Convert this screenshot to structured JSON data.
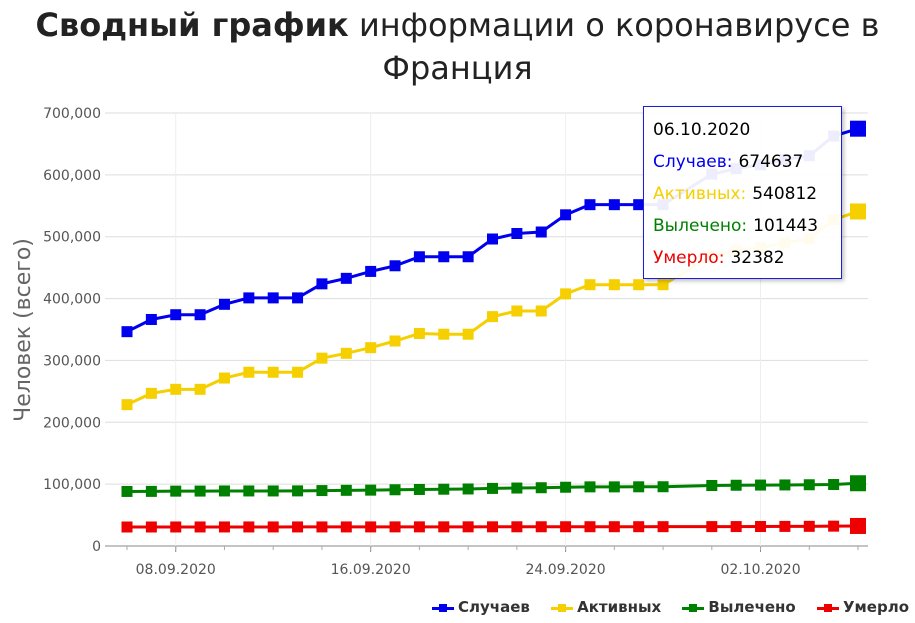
{
  "title": {
    "bold": "Сводный график",
    "rest": "информации о коронавирусе в Франция"
  },
  "colors": {
    "cases": "#0000ee",
    "active": "#f5cf00",
    "recovered": "#008000",
    "deaths": "#ee0000"
  },
  "chart_data": {
    "type": "line",
    "ylabel": "Человек (всего)",
    "ylim": [
      0,
      700000
    ],
    "yticks": [
      "700,000",
      "600,000",
      "500,000",
      "400,000",
      "300,000",
      "200,000",
      "100,000",
      "0"
    ],
    "xtick_labels": [
      "08.09.2020",
      "16.09.2020",
      "24.09.2020",
      "02.10.2020"
    ],
    "x": [
      "06.09.2020",
      "07.09.2020",
      "08.09.2020",
      "09.09.2020",
      "10.09.2020",
      "11.09.2020",
      "12.09.2020",
      "13.09.2020",
      "14.09.2020",
      "15.09.2020",
      "16.09.2020",
      "17.09.2020",
      "18.09.2020",
      "19.09.2020",
      "20.09.2020",
      "21.09.2020",
      "22.09.2020",
      "23.09.2020",
      "24.09.2020",
      "25.09.2020",
      "26.09.2020",
      "27.09.2020",
      "28.09.2020",
      "30.09.2020",
      "01.10.2020",
      "02.10.2020",
      "03.10.2020",
      "04.10.2020",
      "05.10.2020",
      "06.10.2020"
    ],
    "series": [
      {
        "name": "Случаев",
        "color": "#0000ee",
        "values": [
          346500,
          366200,
          373900,
          373900,
          390700,
          401100,
          401100,
          401100,
          423800,
          432700,
          443900,
          453000,
          467600,
          467600,
          467600,
          496300,
          505200,
          507600,
          535400,
          551800,
          551800,
          551800,
          551800,
          601200,
          610100,
          616300,
          624600,
          631000,
          662800,
          674637
        ]
      },
      {
        "name": "Активных",
        "color": "#f5cf00",
        "values": [
          228500,
          246800,
          253300,
          253300,
          271500,
          280900,
          280900,
          280900,
          303700,
          311500,
          320600,
          331400,
          343600,
          342400,
          342400,
          370800,
          379900,
          379900,
          407600,
          422400,
          422400,
          422400,
          422400,
          468200,
          478100,
          482500,
          489800,
          497000,
          527400,
          540812
        ]
      },
      {
        "name": "Вылечено",
        "color": "#008000",
        "values": [
          88200,
          88300,
          88700,
          88800,
          89000,
          89000,
          89000,
          89100,
          89600,
          90000,
          90300,
          90900,
          91400,
          91800,
          92200,
          93100,
          93700,
          94200,
          95000,
          95600,
          95600,
          95700,
          95800,
          97800,
          98200,
          98500,
          98700,
          99000,
          99400,
          101443
        ]
      },
      {
        "name": "Умерло",
        "color": "#ee0000",
        "values": [
          30730,
          30740,
          30760,
          30790,
          30800,
          30810,
          30810,
          30820,
          30830,
          30850,
          30880,
          30910,
          30940,
          30960,
          30990,
          31020,
          31060,
          31090,
          31130,
          31160,
          31190,
          31210,
          31240,
          31350,
          31400,
          31500,
          31670,
          31800,
          32100,
          32382
        ]
      }
    ]
  },
  "tooltip": {
    "date": "06.10.2020",
    "rows": [
      {
        "label": "Случаев:",
        "value": "674637",
        "color": "#0000ee"
      },
      {
        "label": "Активных:",
        "value": "540812",
        "color": "#f5cf00"
      },
      {
        "label": "Вылечено:",
        "value": "101443",
        "color": "#008000"
      },
      {
        "label": "Умерло:",
        "value": "32382",
        "color": "#ee0000"
      }
    ]
  }
}
